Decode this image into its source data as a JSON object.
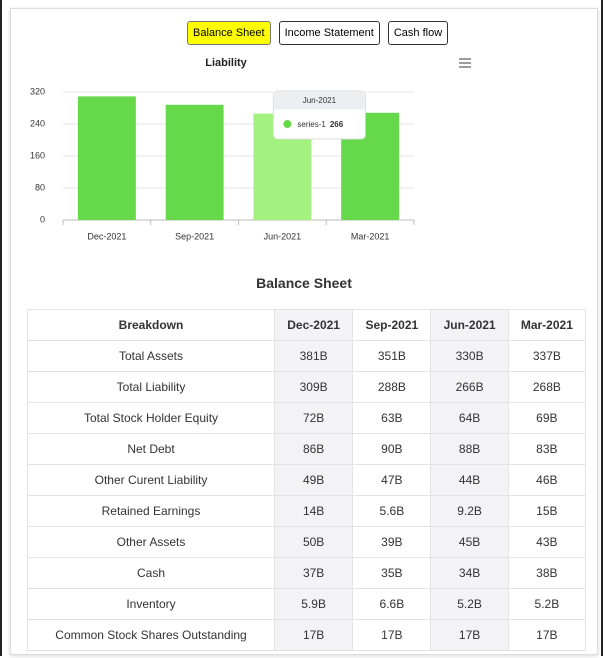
{
  "tabs": [
    "Balance Sheet",
    "Income Statement",
    "Cash flow"
  ],
  "chart_data": {
    "type": "bar",
    "title": "Liability",
    "categories": [
      "Dec-2021",
      "Sep-2021",
      "Jun-2021",
      "Mar-2021"
    ],
    "series": [
      {
        "name": "series-1",
        "color": "#66d94b",
        "values": [
          309,
          288,
          266,
          268
        ]
      }
    ],
    "ylim": [
      0,
      320
    ],
    "yticks": [
      0,
      80,
      160,
      240,
      320
    ],
    "grid": true,
    "tooltip": {
      "category": "Jun-2021",
      "series": "series-1",
      "value": 266
    }
  },
  "table": {
    "title": "Balance Sheet",
    "header": [
      "Breakdown",
      "Dec-2021",
      "Sep-2021",
      "Jun-2021",
      "Mar-2021"
    ],
    "rows": [
      [
        "Total Assets",
        "381B",
        "351B",
        "330B",
        "337B"
      ],
      [
        "Total Liability",
        "309B",
        "288B",
        "266B",
        "268B"
      ],
      [
        "Total Stock Holder Equity",
        "72B",
        "63B",
        "64B",
        "69B"
      ],
      [
        "Net Debt",
        "86B",
        "90B",
        "88B",
        "83B"
      ],
      [
        "Other Curent Liability",
        "49B",
        "47B",
        "44B",
        "46B"
      ],
      [
        "Retained Earnings",
        "14B",
        "5.6B",
        "9.2B",
        "15B"
      ],
      [
        "Other Assets",
        "50B",
        "39B",
        "45B",
        "43B"
      ],
      [
        "Cash",
        "37B",
        "35B",
        "34B",
        "38B"
      ],
      [
        "Inventory",
        "5.9B",
        "6.6B",
        "5.2B",
        "5.2B"
      ],
      [
        "Common Stock Shares Outstanding",
        "17B",
        "17B",
        "17B",
        "17B"
      ]
    ]
  }
}
